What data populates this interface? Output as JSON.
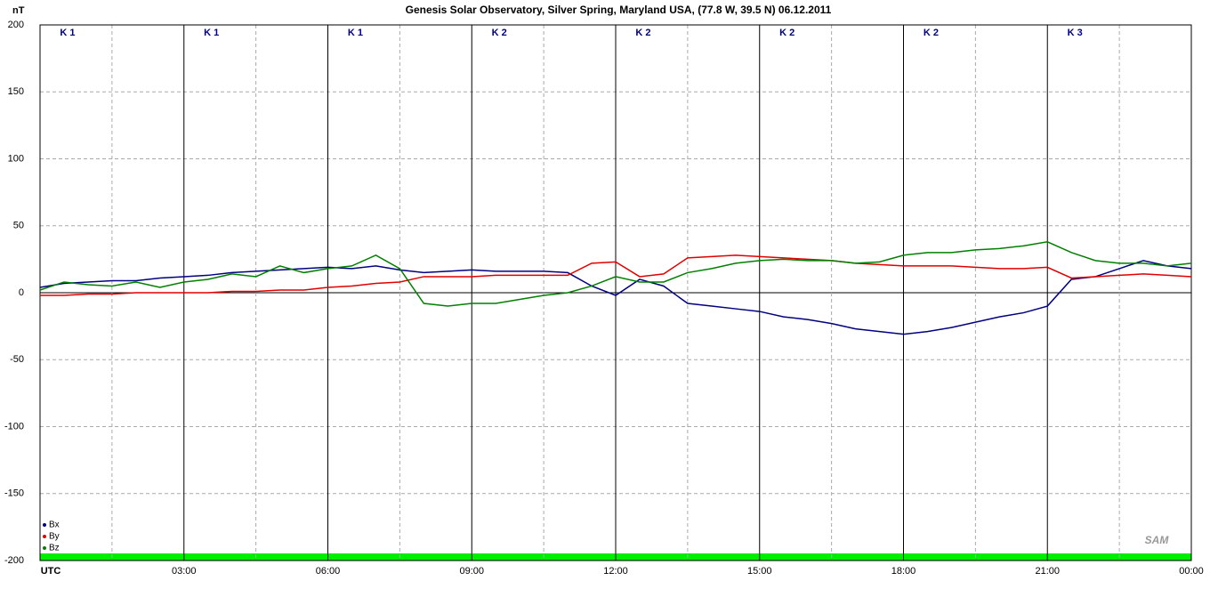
{
  "chart_data": {
    "type": "line",
    "title": "Genesis Solar Observatory, Silver Spring, Maryland USA, (77.8 W, 39.5 N)  06.12.2011",
    "y_label": "nT",
    "k_index": [
      "K 1",
      "K 1",
      "K 1",
      "K 2",
      "K 2",
      "K 2",
      "K 2",
      "K 3"
    ],
    "logo": "SAM",
    "x": [
      0,
      0.5,
      1,
      1.5,
      2,
      2.5,
      3,
      3.5,
      4,
      4.5,
      5,
      5.5,
      6,
      6.5,
      7,
      7.5,
      8,
      8.5,
      9,
      9.5,
      10,
      10.5,
      11,
      11.5,
      12,
      12.5,
      13,
      13.5,
      14,
      14.5,
      15,
      15.5,
      16,
      16.5,
      17,
      17.5,
      18,
      18.5,
      19,
      19.5,
      20,
      20.5,
      21,
      21.5,
      22,
      22.5,
      23,
      23.5,
      24
    ],
    "series": [
      {
        "name": "Bx",
        "color": "#000080",
        "values": [
          4,
          7,
          8,
          9,
          9,
          11,
          12,
          13,
          15,
          16,
          17,
          18,
          19,
          18,
          20,
          17,
          15,
          16,
          17,
          16,
          16,
          16,
          15,
          5,
          -2,
          10,
          5,
          -8,
          -10,
          -12,
          -14,
          -18,
          -20,
          -23,
          -27,
          -29,
          -31,
          -29,
          -26,
          -22,
          -18,
          -15,
          -10,
          10,
          12,
          18,
          24,
          20,
          18
        ]
      },
      {
        "name": "By",
        "color": "#e00000",
        "values": [
          -2,
          -2,
          -1,
          -1,
          0,
          0,
          0,
          0,
          1,
          1,
          2,
          2,
          4,
          5,
          7,
          8,
          12,
          12,
          12,
          13,
          13,
          13,
          13,
          22,
          23,
          12,
          14,
          26,
          27,
          28,
          27,
          26,
          25,
          24,
          22,
          21,
          20,
          20,
          20,
          19,
          18,
          18,
          19,
          11,
          12,
          13,
          14,
          13,
          12
        ]
      },
      {
        "name": "Bz",
        "color": "#008000",
        "values": [
          2,
          8,
          6,
          5,
          8,
          4,
          8,
          10,
          14,
          12,
          20,
          15,
          18,
          20,
          28,
          18,
          -8,
          -10,
          -8,
          -8,
          -5,
          -2,
          0,
          5,
          12,
          8,
          8,
          15,
          18,
          22,
          24,
          25,
          24,
          24,
          22,
          23,
          28,
          30,
          30,
          32,
          33,
          35,
          38,
          30,
          24,
          22,
          22,
          20,
          22
        ]
      }
    ],
    "xlim": [
      0,
      24
    ],
    "xticks": [
      {
        "value": 0,
        "label": "UTC"
      },
      {
        "value": 3,
        "label": "03:00"
      },
      {
        "value": 6,
        "label": "06:00"
      },
      {
        "value": 9,
        "label": "09:00"
      },
      {
        "value": 12,
        "label": "12:00"
      },
      {
        "value": 15,
        "label": "15:00"
      },
      {
        "value": 18,
        "label": "18:00"
      },
      {
        "value": 21,
        "label": "21:00"
      },
      {
        "value": 24,
        "label": "00:00"
      }
    ],
    "ylim": [
      -200,
      200
    ],
    "yticks": [
      -200,
      -150,
      -100,
      -50,
      0,
      50,
      100,
      150,
      200
    ],
    "grid": true,
    "legend": "lower-left"
  }
}
